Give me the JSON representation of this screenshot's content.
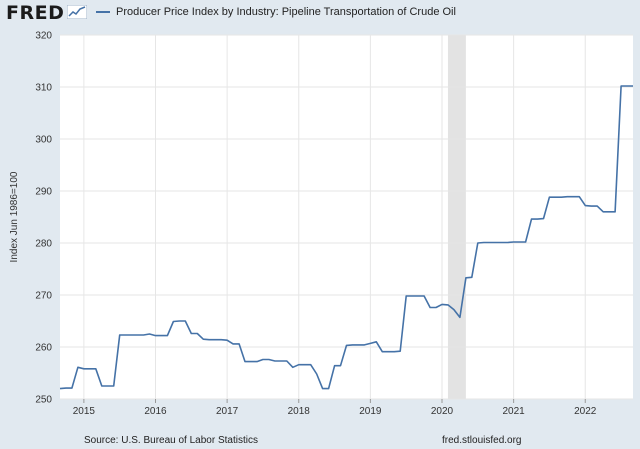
{
  "header": {
    "logo_text": "FRED",
    "logo_icon": "chart-line-icon",
    "legend_label": "Producer Price Index by Industry: Pipeline Transportation of Crude Oil"
  },
  "footer": {
    "source": "Source: U.S. Bureau of Labor Statistics",
    "site": "fred.stlouisfed.org"
  },
  "colors": {
    "page_background": "#e1e9f0",
    "plot_background": "#ffffff",
    "series_line": "#4572a7",
    "recession_shade": "#e3e3e3",
    "gridline": "#e6e6e6"
  },
  "chart_data": {
    "type": "line",
    "title": "",
    "ylabel": "Index Jun 1986=100",
    "xlabel": "",
    "ylim": [
      250,
      320
    ],
    "xlim": [
      "2014-09",
      "2022-09"
    ],
    "yticks": [
      250,
      260,
      270,
      280,
      290,
      300,
      310,
      320
    ],
    "xticks": [
      "2015",
      "2016",
      "2017",
      "2018",
      "2019",
      "2020",
      "2021",
      "2022"
    ],
    "grid": true,
    "legend": "top",
    "recession": {
      "start": "2020-02",
      "end": "2020-04"
    },
    "series": [
      {
        "name": "Producer Price Index by Industry: Pipeline Transportation of Crude Oil",
        "x": [
          "2014-09",
          "2014-10",
          "2014-11",
          "2014-12",
          "2015-01",
          "2015-02",
          "2015-03",
          "2015-04",
          "2015-05",
          "2015-06",
          "2015-07",
          "2015-08",
          "2015-09",
          "2015-10",
          "2015-11",
          "2015-12",
          "2016-01",
          "2016-02",
          "2016-03",
          "2016-04",
          "2016-05",
          "2016-06",
          "2016-07",
          "2016-08",
          "2016-09",
          "2016-10",
          "2016-11",
          "2016-12",
          "2017-01",
          "2017-02",
          "2017-03",
          "2017-04",
          "2017-05",
          "2017-06",
          "2017-07",
          "2017-08",
          "2017-09",
          "2017-10",
          "2017-11",
          "2017-12",
          "2018-01",
          "2018-02",
          "2018-03",
          "2018-04",
          "2018-05",
          "2018-06",
          "2018-07",
          "2018-08",
          "2018-09",
          "2018-10",
          "2018-11",
          "2018-12",
          "2019-01",
          "2019-02",
          "2019-03",
          "2019-04",
          "2019-05",
          "2019-06",
          "2019-07",
          "2019-08",
          "2019-09",
          "2019-10",
          "2019-11",
          "2019-12",
          "2020-01",
          "2020-02",
          "2020-03",
          "2020-04",
          "2020-05",
          "2020-06",
          "2020-07",
          "2020-08",
          "2020-09",
          "2020-10",
          "2020-11",
          "2020-12",
          "2021-01",
          "2021-02",
          "2021-03",
          "2021-04",
          "2021-05",
          "2021-06",
          "2021-07",
          "2021-08",
          "2021-09",
          "2021-10",
          "2021-11",
          "2021-12",
          "2022-01",
          "2022-02",
          "2022-03",
          "2022-04",
          "2022-05",
          "2022-06",
          "2022-07",
          "2022-08",
          "2022-09"
        ],
        "values": [
          252.0,
          252.1,
          252.1,
          256.1,
          255.8,
          255.8,
          255.8,
          252.5,
          252.5,
          252.5,
          262.3,
          262.3,
          262.3,
          262.3,
          262.3,
          262.5,
          262.2,
          262.2,
          262.2,
          264.9,
          265.0,
          265.0,
          262.6,
          262.6,
          261.5,
          261.4,
          261.4,
          261.4,
          261.3,
          260.6,
          260.6,
          257.2,
          257.2,
          257.2,
          257.6,
          257.6,
          257.3,
          257.3,
          257.3,
          256.1,
          256.6,
          256.6,
          256.6,
          254.8,
          252.0,
          252.0,
          256.4,
          256.4,
          260.3,
          260.4,
          260.4,
          260.4,
          260.7,
          261.0,
          259.1,
          259.1,
          259.1,
          259.2,
          269.8,
          269.8,
          269.8,
          269.8,
          267.6,
          267.6,
          268.2,
          268.1,
          267.2,
          265.7,
          273.3,
          273.4,
          280.0,
          280.1,
          280.1,
          280.1,
          280.1,
          280.1,
          280.2,
          280.2,
          280.2,
          284.6,
          284.6,
          284.7,
          288.8,
          288.8,
          288.8,
          288.9,
          288.9,
          288.9,
          287.2,
          287.1,
          287.1,
          286.0,
          286.0,
          286.0,
          310.2,
          310.2,
          310.2
        ]
      }
    ]
  }
}
